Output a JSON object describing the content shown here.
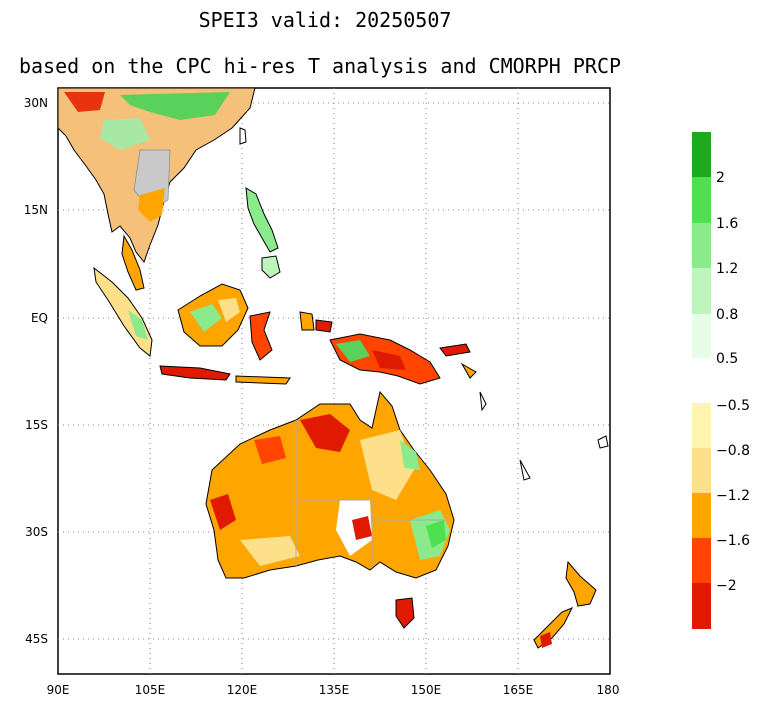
{
  "title": {
    "line1": "SPEI3   valid: 20250507",
    "line2": "based on the CPC hi-res T analysis and CMORPH PRCP"
  },
  "axes": {
    "lat_labels": [
      "30N",
      "15N",
      "EQ",
      "15S",
      "30S",
      "45S"
    ],
    "lon_labels": [
      "90E",
      "105E",
      "120E",
      "135E",
      "150E",
      "165E",
      "180"
    ]
  },
  "colorbar": {
    "wet": {
      "labels": [
        "2",
        "1.6",
        "1.2",
        "0.8",
        "0.5"
      ],
      "colors": [
        "#1eaa1e",
        "#4fe04f",
        "#8bea8b",
        "#bdf5bd",
        "#e8fde8"
      ]
    },
    "dry": {
      "labels": [
        "−0.5",
        "−0.8",
        "−1.2",
        "−1.6",
        "−2"
      ],
      "colors": [
        "#fff5b0",
        "#ffe08a",
        "#ffa500",
        "#ff4500",
        "#e01a00"
      ]
    }
  }
}
